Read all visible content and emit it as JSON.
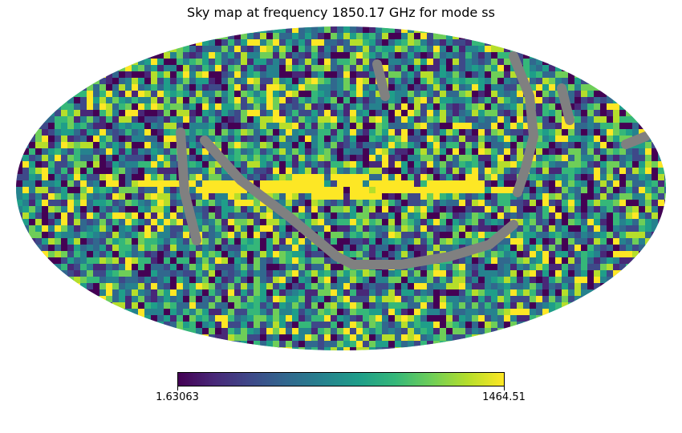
{
  "chart_data": {
    "type": "heatmap",
    "projection": "mollweide",
    "title": "Sky map at frequency 1850.17 GHz for mode ss",
    "colormap": "viridis",
    "colorbar": {
      "min": 1.63063,
      "max": 1464.51,
      "min_label": "1.63063",
      "max_label": "1464.51",
      "orientation": "horizontal",
      "placement": "bottom"
    },
    "masked_color": "#808080",
    "features": [
      {
        "name": "galactic-plane-band",
        "description_values": "saturated at max value along the central horizontal band"
      },
      {
        "name": "masked-scan-stripes",
        "value": "masked"
      }
    ]
  },
  "colors": {
    "viridis": [
      "#440154",
      "#482878",
      "#3e4989",
      "#31688e",
      "#26828e",
      "#1f9e89",
      "#35b779",
      "#6ece58",
      "#b5de2b",
      "#fde725"
    ],
    "masked": "#808080"
  }
}
